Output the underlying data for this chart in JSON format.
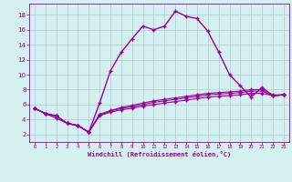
{
  "xlabel": "Windchill (Refroidissement éolien,°C)",
  "background_color": "#d4f0f0",
  "line_color": "#990099",
  "grid_color": "#b0c8d0",
  "xlim": [
    -0.5,
    23.5
  ],
  "ylim": [
    1.0,
    19.5
  ],
  "xticks": [
    0,
    1,
    2,
    3,
    4,
    5,
    6,
    7,
    8,
    9,
    10,
    11,
    12,
    13,
    14,
    15,
    16,
    17,
    18,
    19,
    20,
    21,
    22,
    23
  ],
  "yticks": [
    2,
    4,
    6,
    8,
    10,
    12,
    14,
    16,
    18
  ],
  "line1_x": [
    0,
    1,
    2,
    3,
    4,
    5,
    6,
    7,
    8,
    9,
    10,
    11,
    12,
    13,
    14,
    15,
    16,
    17,
    18,
    19,
    20,
    21,
    22,
    23
  ],
  "line1_y": [
    5.5,
    4.8,
    4.2,
    3.5,
    3.2,
    2.3,
    6.2,
    10.5,
    13.0,
    14.8,
    16.5,
    16.0,
    16.5,
    18.5,
    17.8,
    17.5,
    15.8,
    13.0,
    10.0,
    8.5,
    7.0,
    8.3,
    7.2,
    7.3
  ],
  "line2_x": [
    0,
    1,
    2,
    3,
    4,
    5,
    6,
    7,
    8,
    9,
    10,
    11,
    12,
    13,
    14,
    15,
    16,
    17,
    18,
    19,
    20,
    21,
    22,
    23
  ],
  "line2_y": [
    5.5,
    4.8,
    4.5,
    3.5,
    3.2,
    2.3,
    4.5,
    5.0,
    5.3,
    5.5,
    5.8,
    6.0,
    6.2,
    6.4,
    6.6,
    6.8,
    7.0,
    7.1,
    7.2,
    7.3,
    7.5,
    7.5,
    7.2,
    7.3
  ],
  "line3_x": [
    0,
    1,
    2,
    3,
    4,
    5,
    6,
    7,
    8,
    9,
    10,
    11,
    12,
    13,
    14,
    15,
    16,
    17,
    18,
    19,
    20,
    21,
    22,
    23
  ],
  "line3_y": [
    5.5,
    4.8,
    4.5,
    3.5,
    3.2,
    2.3,
    4.7,
    5.2,
    5.6,
    5.9,
    6.2,
    6.5,
    6.7,
    6.9,
    7.1,
    7.3,
    7.5,
    7.6,
    7.7,
    7.8,
    8.0,
    8.0,
    7.3,
    7.3
  ],
  "line4_x": [
    0,
    1,
    2,
    3,
    4,
    5,
    6,
    7,
    8,
    9,
    10,
    11,
    12,
    13,
    14,
    15,
    16,
    17,
    18,
    19,
    20,
    21,
    22,
    23
  ],
  "line4_y": [
    5.5,
    4.8,
    4.5,
    3.5,
    3.2,
    2.3,
    4.6,
    5.1,
    5.5,
    5.7,
    6.0,
    6.3,
    6.5,
    6.7,
    6.9,
    7.1,
    7.3,
    7.4,
    7.5,
    7.6,
    7.8,
    7.8,
    7.2,
    7.3
  ]
}
